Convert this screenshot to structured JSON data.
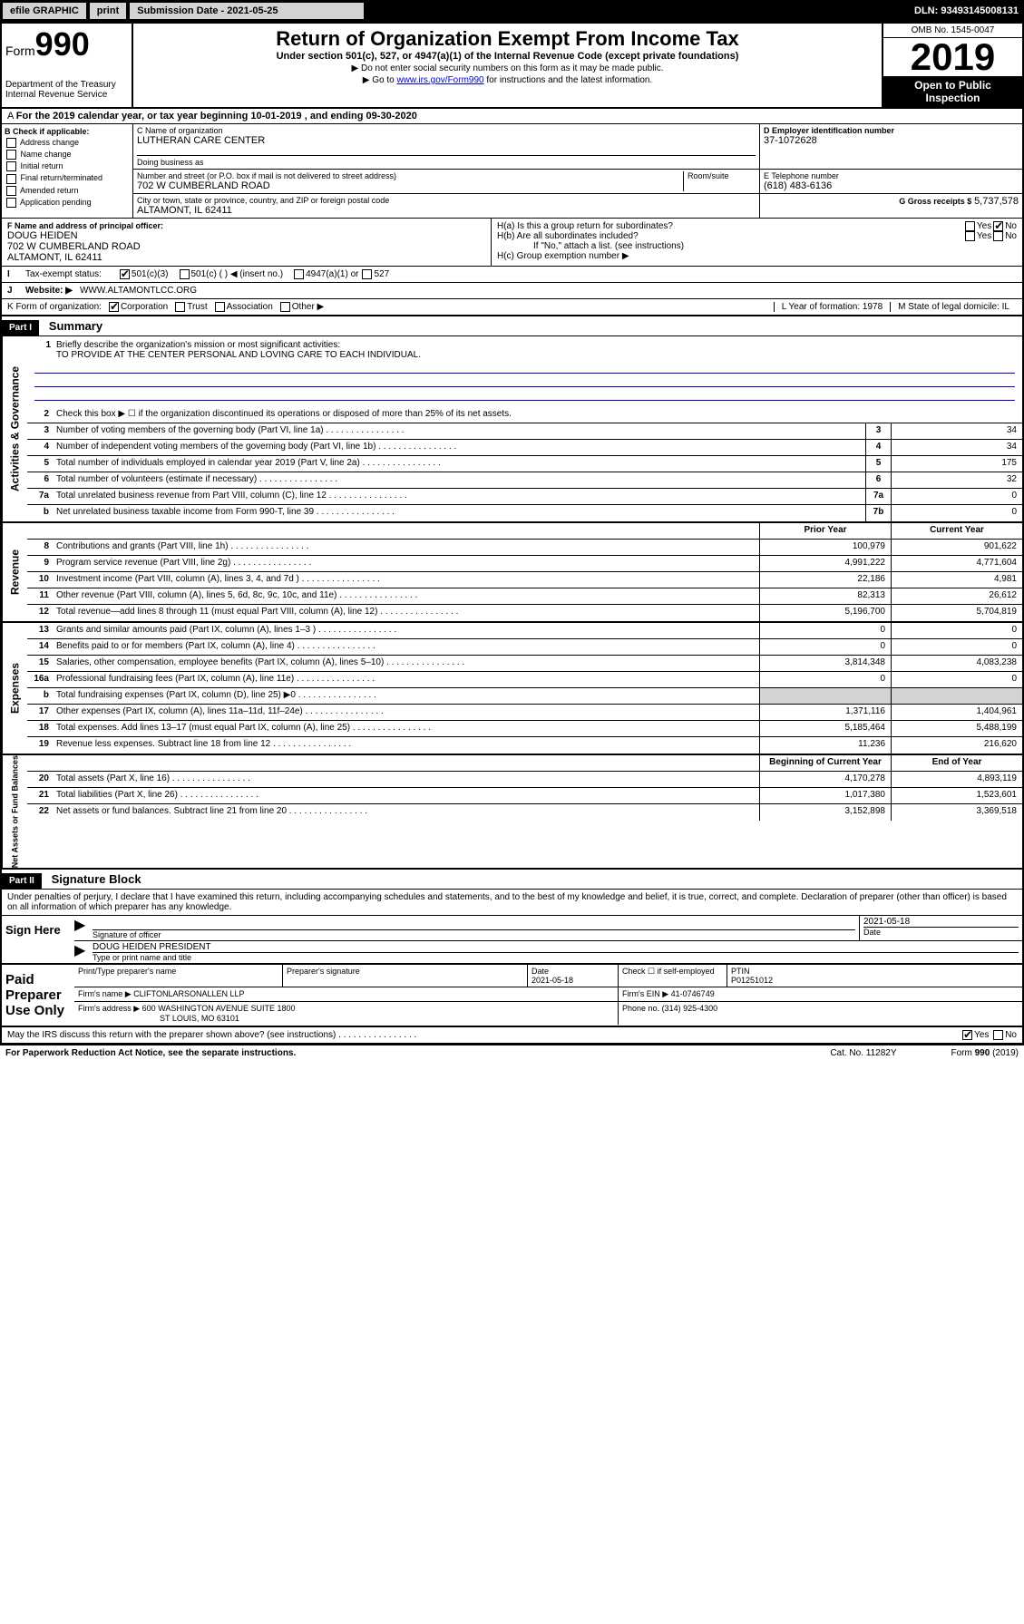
{
  "topbar": {
    "efile": "efile GRAPHIC",
    "print": "print",
    "submission": "Submission Date - 2021-05-25",
    "dln": "DLN: 93493145008131"
  },
  "header": {
    "form_label": "Form",
    "form_num": "990",
    "dept": "Department of the Treasury",
    "irs": "Internal Revenue Service",
    "title": "Return of Organization Exempt From Income Tax",
    "sub1": "Under section 501(c), 527, or 4947(a)(1) of the Internal Revenue Code (except private foundations)",
    "sub2": "▶ Do not enter social security numbers on this form as it may be made public.",
    "sub3_pre": "▶ Go to ",
    "sub3_link": "www.irs.gov/Form990",
    "sub3_post": " for instructions and the latest information.",
    "omb": "OMB No. 1545-0047",
    "year": "2019",
    "open": "Open to Public Inspection"
  },
  "lineA": "For the 2019 calendar year, or tax year beginning 10-01-2019   , and ending 09-30-2020",
  "boxB": {
    "title": "B Check if applicable:",
    "opts": [
      "Address change",
      "Name change",
      "Initial return",
      "Final return/terminated",
      "Amended return",
      "Application pending"
    ]
  },
  "boxC": {
    "name_label": "C Name of organization",
    "name": "LUTHERAN CARE CENTER",
    "dba": "Doing business as",
    "addr_label": "Number and street (or P.O. box if mail is not delivered to street address)",
    "room": "Room/suite",
    "addr": "702 W CUMBERLAND ROAD",
    "city_label": "City or town, state or province, country, and ZIP or foreign postal code",
    "city": "ALTAMONT, IL  62411"
  },
  "boxD": {
    "label": "D Employer identification number",
    "val": "37-1072628"
  },
  "boxE": {
    "label": "E Telephone number",
    "val": "(618) 483-6136"
  },
  "boxG": {
    "label": "G Gross receipts $",
    "val": "5,737,578"
  },
  "boxF": {
    "label": "F Name and address of principal officer:",
    "name": "DOUG HEIDEN",
    "addr1": "702 W CUMBERLAND ROAD",
    "addr2": "ALTAMONT, IL  62411"
  },
  "boxH": {
    "a": "H(a)  Is this a group return for subordinates?",
    "b": "H(b)  Are all subordinates included?",
    "b_note": "If \"No,\" attach a list. (see instructions)",
    "c": "H(c)  Group exemption number ▶"
  },
  "lineI": "Tax-exempt status:",
  "lineI_opts": [
    "501(c)(3)",
    "501(c) (  ) ◀ (insert no.)",
    "4947(a)(1) or",
    "527"
  ],
  "lineJ": {
    "label": "Website: ▶",
    "val": "WWW.ALTAMONTLCC.ORG"
  },
  "lineK": {
    "label": "K Form of organization:",
    "opts": [
      "Corporation",
      "Trust",
      "Association",
      "Other ▶"
    ]
  },
  "lineL": {
    "label": "L Year of formation:",
    "val": "1978"
  },
  "lineM": {
    "label": "M State of legal domicile:",
    "val": "IL"
  },
  "part1": {
    "header": "Part I",
    "title": "Summary",
    "l1_label": "Briefly describe the organization's mission or most significant activities:",
    "l1_val": "TO PROVIDE AT THE CENTER PERSONAL AND LOVING CARE TO EACH INDIVIDUAL.",
    "l2": "Check this box ▶ ☐  if the organization discontinued its operations or disposed of more than 25% of its net assets.",
    "lines_gov": [
      {
        "n": "3",
        "t": "Number of voting members of the governing body (Part VI, line 1a)",
        "c": "3",
        "v": "34"
      },
      {
        "n": "4",
        "t": "Number of independent voting members of the governing body (Part VI, line 1b)",
        "c": "4",
        "v": "34"
      },
      {
        "n": "5",
        "t": "Total number of individuals employed in calendar year 2019 (Part V, line 2a)",
        "c": "5",
        "v": "175"
      },
      {
        "n": "6",
        "t": "Total number of volunteers (estimate if necessary)",
        "c": "6",
        "v": "32"
      },
      {
        "n": "7a",
        "t": "Total unrelated business revenue from Part VIII, column (C), line 12",
        "c": "7a",
        "v": "0"
      },
      {
        "n": "b",
        "t": "Net unrelated business taxable income from Form 990-T, line 39",
        "c": "7b",
        "v": "0"
      }
    ],
    "col_prior": "Prior Year",
    "col_current": "Current Year",
    "col_begin": "Beginning of Current Year",
    "col_end": "End of Year",
    "rev": [
      {
        "n": "8",
        "t": "Contributions and grants (Part VIII, line 1h)",
        "p": "100,979",
        "c": "901,622"
      },
      {
        "n": "9",
        "t": "Program service revenue (Part VIII, line 2g)",
        "p": "4,991,222",
        "c": "4,771,604"
      },
      {
        "n": "10",
        "t": "Investment income (Part VIII, column (A), lines 3, 4, and 7d )",
        "p": "22,186",
        "c": "4,981"
      },
      {
        "n": "11",
        "t": "Other revenue (Part VIII, column (A), lines 5, 6d, 8c, 9c, 10c, and 11e)",
        "p": "82,313",
        "c": "26,612"
      },
      {
        "n": "12",
        "t": "Total revenue—add lines 8 through 11 (must equal Part VIII, column (A), line 12)",
        "p": "5,196,700",
        "c": "5,704,819"
      }
    ],
    "exp": [
      {
        "n": "13",
        "t": "Grants and similar amounts paid (Part IX, column (A), lines 1–3 )",
        "p": "0",
        "c": "0"
      },
      {
        "n": "14",
        "t": "Benefits paid to or for members (Part IX, column (A), line 4)",
        "p": "0",
        "c": "0"
      },
      {
        "n": "15",
        "t": "Salaries, other compensation, employee benefits (Part IX, column (A), lines 5–10)",
        "p": "3,814,348",
        "c": "4,083,238"
      },
      {
        "n": "16a",
        "t": "Professional fundraising fees (Part IX, column (A), line 11e)",
        "p": "0",
        "c": "0"
      },
      {
        "n": "b",
        "t": "Total fundraising expenses (Part IX, column (D), line 25) ▶0",
        "p": "",
        "c": "",
        "gray": true
      },
      {
        "n": "17",
        "t": "Other expenses (Part IX, column (A), lines 11a–11d, 11f–24e)",
        "p": "1,371,116",
        "c": "1,404,961"
      },
      {
        "n": "18",
        "t": "Total expenses. Add lines 13–17 (must equal Part IX, column (A), line 25)",
        "p": "5,185,464",
        "c": "5,488,199"
      },
      {
        "n": "19",
        "t": "Revenue less expenses. Subtract line 18 from line 12",
        "p": "11,236",
        "c": "216,620"
      }
    ],
    "net": [
      {
        "n": "20",
        "t": "Total assets (Part X, line 16)",
        "p": "4,170,278",
        "c": "4,893,119"
      },
      {
        "n": "21",
        "t": "Total liabilities (Part X, line 26)",
        "p": "1,017,380",
        "c": "1,523,601"
      },
      {
        "n": "22",
        "t": "Net assets or fund balances. Subtract line 21 from line 20",
        "p": "3,152,898",
        "c": "3,369,518"
      }
    ]
  },
  "part2": {
    "header": "Part II",
    "title": "Signature Block",
    "decl": "Under penalties of perjury, I declare that I have examined this return, including accompanying schedules and statements, and to the best of my knowledge and belief, it is true, correct, and complete. Declaration of preparer (other than officer) is based on all information of which preparer has any knowledge."
  },
  "sign": {
    "label": "Sign Here",
    "sig_of": "Signature of officer",
    "date": "2021-05-18",
    "date_label": "Date",
    "name": "DOUG HEIDEN  PRESIDENT",
    "name_label": "Type or print name and title"
  },
  "prep": {
    "label": "Paid Preparer Use Only",
    "h1": "Print/Type preparer's name",
    "h2": "Preparer's signature",
    "h3": "Date",
    "h3v": "2021-05-18",
    "h4": "Check ☐ if self-employed",
    "h5": "PTIN",
    "h5v": "P01251012",
    "firm_name_l": "Firm's name    ▶",
    "firm_name": "CLIFTONLARSONALLEN LLP",
    "firm_ein_l": "Firm's EIN ▶",
    "firm_ein": "41-0746749",
    "firm_addr_l": "Firm's address ▶",
    "firm_addr1": "600 WASHINGTON AVENUE SUITE 1800",
    "firm_addr2": "ST LOUIS, MO  63101",
    "phone_l": "Phone no.",
    "phone": "(314) 925-4300"
  },
  "footer": {
    "discuss": "May the IRS discuss this return with the preparer shown above? (see instructions)",
    "pra": "For Paperwork Reduction Act Notice, see the separate instructions.",
    "cat": "Cat. No. 11282Y",
    "form": "Form 990 (2019)"
  },
  "vert": {
    "gov": "Activities & Governance",
    "rev": "Revenue",
    "exp": "Expenses",
    "net": "Net Assets or Fund Balances"
  }
}
